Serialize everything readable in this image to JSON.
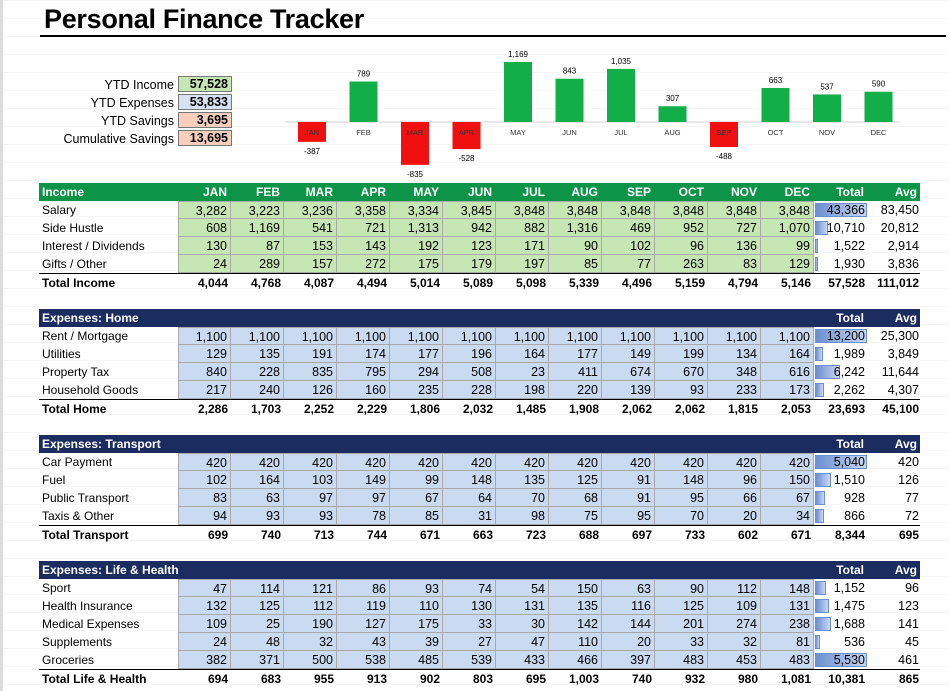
{
  "title": "Personal Finance Tracker",
  "colors": {
    "income_hdr": "#0d9448",
    "income_cell": "#c6e7b4",
    "expense_hdr": "#1b2c60",
    "expense_cell": "#c9daf1",
    "pos_bar": "#12ae48",
    "neg_bar": "#f01010",
    "total_bar": "#6b8fd1"
  },
  "summary": [
    {
      "label": "YTD Income",
      "value": "57,528",
      "bg": "#c6e7b4"
    },
    {
      "label": "YTD Expenses",
      "value": "53,833",
      "bg": "#d6e2f3"
    },
    {
      "label": "YTD Savings",
      "value": "3,695",
      "bg": "#f8cfbd"
    },
    {
      "label": "Cumulative Savings",
      "value": "13,695",
      "bg": "#f8cfbd"
    }
  ],
  "chart_data": {
    "type": "bar",
    "categories": [
      "JAN",
      "FEB",
      "MAR",
      "APR",
      "MAY",
      "JUN",
      "JUL",
      "AUG",
      "SEP",
      "OCT",
      "NOV",
      "DEC"
    ],
    "values": [
      -387,
      789,
      -835,
      -528,
      1169,
      843,
      1035,
      307,
      -488,
      663,
      537,
      590
    ],
    "labels": [
      "-387",
      "789",
      "-835",
      "-528",
      "1,169",
      "843",
      "1,035",
      "307",
      "-488",
      "663",
      "537",
      "590"
    ]
  },
  "months": [
    "JAN",
    "FEB",
    "MAR",
    "APR",
    "MAY",
    "JUN",
    "JUL",
    "AUG",
    "SEP",
    "OCT",
    "NOV",
    "DEC"
  ],
  "total_hdr": "Total",
  "avg_hdr": "Avg",
  "sections": [
    {
      "name": "Income",
      "type": "income",
      "show_months": true,
      "rows": [
        {
          "label": "Salary",
          "vals": [
            "3,282",
            "3,223",
            "3,236",
            "3,358",
            "3,334",
            "3,845",
            "3,848",
            "3,848",
            "3,848",
            "3,848",
            "3,848",
            "3,848"
          ],
          "total": "43,366",
          "share": 1.0,
          "avg": "83,450"
        },
        {
          "label": "Side Hustle",
          "vals": [
            "608",
            "1,169",
            "541",
            "721",
            "1,313",
            "942",
            "882",
            "1,316",
            "469",
            "952",
            "727",
            "1,070"
          ],
          "total": "10,710",
          "share": 0.247,
          "avg": "20,812"
        },
        {
          "label": "Interest / Dividends",
          "vals": [
            "130",
            "87",
            "153",
            "143",
            "192",
            "123",
            "171",
            "90",
            "102",
            "96",
            "136",
            "99"
          ],
          "total": "1,522",
          "share": 0.035,
          "avg": "2,914"
        },
        {
          "label": "Gifts / Other",
          "vals": [
            "24",
            "289",
            "157",
            "272",
            "175",
            "179",
            "197",
            "85",
            "77",
            "263",
            "83",
            "129"
          ],
          "total": "1,930",
          "share": 0.045,
          "avg": "3,836"
        }
      ],
      "total_label": "Total Income",
      "totals": [
        "4,044",
        "4,768",
        "4,087",
        "4,494",
        "5,014",
        "5,089",
        "5,098",
        "5,339",
        "4,496",
        "5,159",
        "4,794",
        "5,146"
      ],
      "grand": "57,528",
      "grand_avg": "111,012"
    },
    {
      "name": "Expenses: Home",
      "type": "expense",
      "show_months": false,
      "rows": [
        {
          "label": "Rent / Mortgage",
          "vals": [
            "1,100",
            "1,100",
            "1,100",
            "1,100",
            "1,100",
            "1,100",
            "1,100",
            "1,100",
            "1,100",
            "1,100",
            "1,100",
            "1,100"
          ],
          "total": "13,200",
          "share": 1.0,
          "avg": "25,300"
        },
        {
          "label": "Utilities",
          "vals": [
            "129",
            "135",
            "191",
            "174",
            "177",
            "196",
            "164",
            "177",
            "149",
            "199",
            "134",
            "164"
          ],
          "total": "1,989",
          "share": 0.151,
          "avg": "3,849"
        },
        {
          "label": "Property Tax",
          "vals": [
            "840",
            "228",
            "835",
            "795",
            "294",
            "508",
            "23",
            "411",
            "674",
            "670",
            "348",
            "616"
          ],
          "total": "6,242",
          "share": 0.473,
          "avg": "11,644"
        },
        {
          "label": "Household Goods",
          "vals": [
            "217",
            "240",
            "126",
            "160",
            "235",
            "228",
            "198",
            "220",
            "139",
            "93",
            "233",
            "173"
          ],
          "total": "2,262",
          "share": 0.171,
          "avg": "4,307"
        }
      ],
      "total_label": "Total Home",
      "totals": [
        "2,286",
        "1,703",
        "2,252",
        "2,229",
        "1,806",
        "2,032",
        "1,485",
        "1,908",
        "2,062",
        "2,062",
        "1,815",
        "2,053"
      ],
      "grand": "23,693",
      "grand_avg": "45,100"
    },
    {
      "name": "Expenses: Transport",
      "type": "expense",
      "show_months": false,
      "rows": [
        {
          "label": "Car Payment",
          "vals": [
            "420",
            "420",
            "420",
            "420",
            "420",
            "420",
            "420",
            "420",
            "420",
            "420",
            "420",
            "420"
          ],
          "total": "5,040",
          "share": 1.0,
          "avg": "420"
        },
        {
          "label": "Fuel",
          "vals": [
            "102",
            "164",
            "103",
            "149",
            "99",
            "148",
            "135",
            "125",
            "91",
            "148",
            "96",
            "150"
          ],
          "total": "1,510",
          "share": 0.3,
          "avg": "126"
        },
        {
          "label": "Public Transport",
          "vals": [
            "83",
            "63",
            "97",
            "97",
            "67",
            "64",
            "70",
            "68",
            "91",
            "95",
            "66",
            "67"
          ],
          "total": "928",
          "share": 0.184,
          "avg": "77"
        },
        {
          "label": "Taxis & Other",
          "vals": [
            "94",
            "93",
            "93",
            "78",
            "85",
            "31",
            "98",
            "75",
            "95",
            "70",
            "20",
            "34"
          ],
          "total": "866",
          "share": 0.172,
          "avg": "72"
        }
      ],
      "total_label": "Total Transport",
      "totals": [
        "699",
        "740",
        "713",
        "744",
        "671",
        "663",
        "723",
        "688",
        "697",
        "733",
        "602",
        "671"
      ],
      "grand": "8,344",
      "grand_avg": "695"
    },
    {
      "name": "Expenses: Life & Health",
      "type": "expense",
      "show_months": false,
      "rows": [
        {
          "label": "Sport",
          "vals": [
            "47",
            "114",
            "121",
            "86",
            "93",
            "74",
            "54",
            "150",
            "63",
            "90",
            "112",
            "148"
          ],
          "total": "1,152",
          "share": 0.208,
          "avg": "96"
        },
        {
          "label": "Health Insurance",
          "vals": [
            "132",
            "125",
            "112",
            "119",
            "110",
            "130",
            "131",
            "135",
            "116",
            "125",
            "109",
            "131"
          ],
          "total": "1,475",
          "share": 0.267,
          "avg": "123"
        },
        {
          "label": "Medical Expenses",
          "vals": [
            "109",
            "25",
            "190",
            "127",
            "175",
            "33",
            "30",
            "142",
            "144",
            "201",
            "274",
            "238"
          ],
          "total": "1,688",
          "share": 0.305,
          "avg": "141"
        },
        {
          "label": "Supplements",
          "vals": [
            "24",
            "48",
            "32",
            "43",
            "39",
            "27",
            "47",
            "110",
            "20",
            "33",
            "32",
            "81"
          ],
          "total": "536",
          "share": 0.097,
          "avg": "45"
        },
        {
          "label": "Groceries",
          "vals": [
            "382",
            "371",
            "500",
            "538",
            "485",
            "539",
            "433",
            "466",
            "397",
            "483",
            "453",
            "483"
          ],
          "total": "5,530",
          "share": 1.0,
          "avg": "461"
        }
      ],
      "total_label": "Total Life & Health",
      "totals": [
        "694",
        "683",
        "955",
        "913",
        "902",
        "803",
        "695",
        "1,003",
        "740",
        "932",
        "980",
        "1,081"
      ],
      "grand": "10,381",
      "grand_avg": "865"
    }
  ]
}
